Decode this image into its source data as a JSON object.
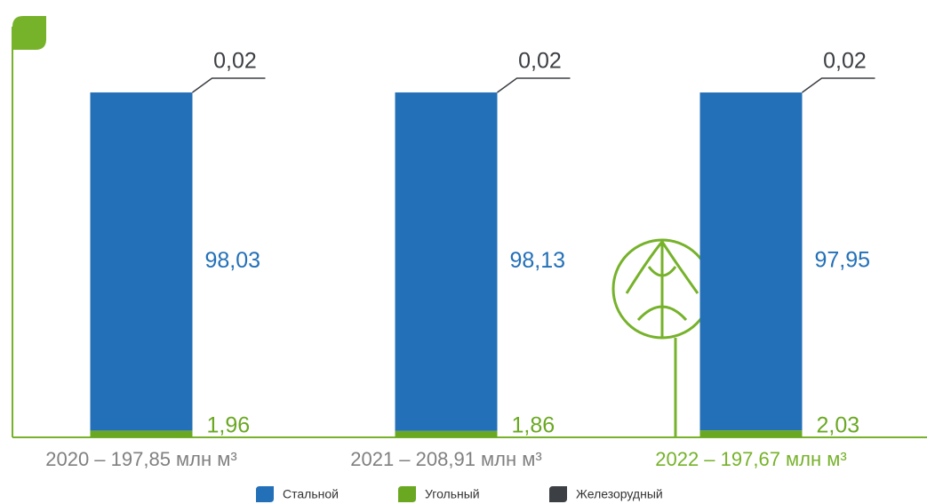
{
  "chart_data": {
    "type": "stacked_bar",
    "categories": [
      "2020 – 197,85 млн м³",
      "2021 – 208,91 млн м³",
      "2022 – 197,67 млн м³"
    ],
    "category_label_colors": [
      "#808080",
      "#808080",
      "#76b22a"
    ],
    "series": [
      {
        "name": "Угольный",
        "color": "#6aa822",
        "values": [
          1.96,
          1.86,
          2.03
        ],
        "value_labels": [
          "1,96",
          "1,86",
          "2,03"
        ]
      },
      {
        "name": "Стальной",
        "color": "#2370b8",
        "values": [
          98.03,
          98.13,
          97.95
        ],
        "value_labels": [
          "98,03",
          "98,13",
          "97,95"
        ]
      },
      {
        "name": "Железорудный",
        "color": "#3c3f44",
        "values": [
          0.02,
          0.02,
          0.02
        ],
        "value_labels": [
          "0,02",
          "0,02",
          "0,02"
        ]
      }
    ],
    "legend_order": [
      1,
      0,
      2
    ],
    "ylim": [
      0,
      100
    ]
  }
}
